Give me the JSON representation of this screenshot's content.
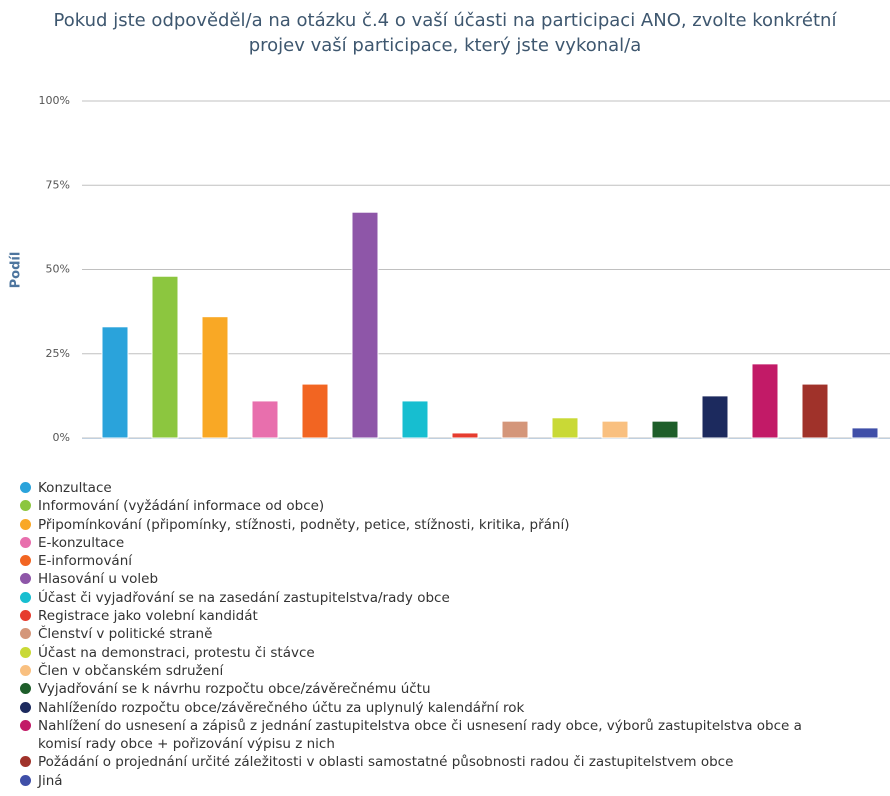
{
  "chart_data": {
    "type": "bar",
    "title": "Pokud jste odpověděl/a na otázku č.4 o vaší účasti na participaci ANO, zvolte konkrétní projev vaší participace, který jste vykonal/a",
    "y_label": "Podíl",
    "categories": [
      null
    ],
    "ylim": [
      0,
      100
    ],
    "yticks": [
      {
        "value": 0,
        "label": "0%"
      },
      {
        "value": 25,
        "label": "25%"
      },
      {
        "value": 50,
        "label": "50%"
      },
      {
        "value": 75,
        "label": "75%"
      },
      {
        "value": 100,
        "label": "100%"
      }
    ],
    "grid": true,
    "legend": "bottom",
    "series": [
      {
        "name": "Konzultace",
        "color": "#2aa3db",
        "values": [
          33
        ]
      },
      {
        "name": "Informování (vyžádání informace od obce)",
        "color": "#8cc63f",
        "values": [
          48
        ]
      },
      {
        "name": "Připomínkování (připomínky, stížnosti, podněty, petice, stížnosti, kritika, přání)",
        "color": "#f9a825",
        "values": [
          36
        ]
      },
      {
        "name": "E-konzultace",
        "color": "#e86fad",
        "values": [
          11
        ]
      },
      {
        "name": "E-informování",
        "color": "#f26522",
        "values": [
          16
        ]
      },
      {
        "name": "Hlasování u voleb",
        "color": "#8e56a8",
        "values": [
          67
        ]
      },
      {
        "name": "Účast či vyjadřování se na zasedání zastupitelstva/rady obce",
        "color": "#17bed0",
        "values": [
          11
        ]
      },
      {
        "name": "Registrace jako volební kandidát",
        "color": "#e63c2f",
        "values": [
          1.5
        ]
      },
      {
        "name": "Členství v politické straně",
        "color": "#d4967a",
        "values": [
          5
        ]
      },
      {
        "name": "Účast na demonstraci, protestu či stávce",
        "color": "#c9d936",
        "values": [
          6
        ]
      },
      {
        "name": "Člen v občanském sdružení",
        "color": "#f9c080",
        "values": [
          5
        ]
      },
      {
        "name": "Vyjadřování se k návrhu rozpočtu obce/závěrečnému účtu",
        "color": "#1e5e2a",
        "values": [
          5
        ]
      },
      {
        "name": "Nahlíženído rozpočtu obce/závěrečného účtu za uplynulý kalendářní rok",
        "color": "#1c2a5e",
        "values": [
          12.5
        ]
      },
      {
        "name": "Nahlížení do usnesení a zápisů z jednání zastupitelstva obce či usnesení rady obce, výborů zastupitelstva obce a komisí rady obce + pořizování výpisu z nich",
        "color": "#c21a67",
        "values": [
          22
        ]
      },
      {
        "name": "Požádání o projednání určité záležitosti v oblasti samostatné působnosti radou či zastupitelstvem obce",
        "color": "#a0322a",
        "values": [
          16
        ]
      },
      {
        "name": "Jiná",
        "color": "#3f4fa8",
        "values": [
          3
        ]
      }
    ]
  }
}
